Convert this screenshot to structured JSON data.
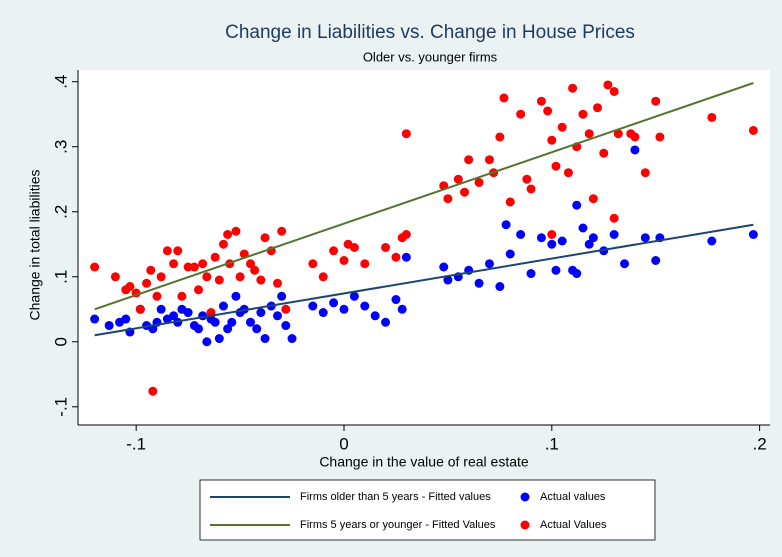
{
  "chart_data": {
    "type": "scatter",
    "title": "Change in Liabilities vs. Change in House Prices",
    "subtitle": "Older vs. younger firms",
    "x_label": "Change in the value of real estate",
    "y_label": "Change in total liabilities",
    "xlim": [
      -0.128,
      0.205
    ],
    "ylim": [
      -0.128,
      0.418
    ],
    "xticks": [
      {
        "value": -0.1,
        "label": "-.1"
      },
      0,
      {
        "value": 0.1,
        "label": ".1"
      },
      {
        "value": 0.2,
        "label": ".2"
      }
    ],
    "yticks": [
      {
        "value": -0.1,
        "label": "-.1"
      },
      0,
      {
        "value": 0.1,
        "label": ".1"
      },
      {
        "value": 0.2,
        "label": ".2"
      },
      {
        "value": 0.3,
        "label": ".3"
      },
      {
        "value": 0.4,
        "label": ".4"
      }
    ],
    "grid": false,
    "legend": "bottom",
    "series": [
      {
        "name": "Firms older than 5 years - Fitted values",
        "type": "line",
        "color": "#1a476f",
        "x": [
          -0.12,
          0.197
        ],
        "values": [
          0.01,
          0.18
        ]
      },
      {
        "name": "Actual values",
        "type": "scatter",
        "color": "#0000ff",
        "x": [
          -0.12,
          -0.113,
          -0.108,
          -0.105,
          -0.103,
          -0.098,
          -0.095,
          -0.092,
          -0.09,
          -0.088,
          -0.085,
          -0.082,
          -0.08,
          -0.078,
          -0.075,
          -0.072,
          -0.07,
          -0.068,
          -0.066,
          -0.064,
          -0.062,
          -0.06,
          -0.058,
          -0.056,
          -0.054,
          -0.052,
          -0.05,
          -0.048,
          -0.045,
          -0.042,
          -0.04,
          -0.038,
          -0.035,
          -0.032,
          -0.03,
          -0.028,
          -0.025,
          -0.015,
          -0.01,
          -0.005,
          0.0,
          0.005,
          0.01,
          0.015,
          0.02,
          0.025,
          0.028,
          0.03,
          0.048,
          0.05,
          0.055,
          0.06,
          0.065,
          0.07,
          0.075,
          0.078,
          0.085,
          0.09,
          0.095,
          0.1,
          0.102,
          0.105,
          0.11,
          0.112,
          0.115,
          0.118,
          0.12,
          0.125,
          0.13,
          0.135,
          0.14,
          0.145,
          0.15,
          0.152,
          0.177,
          0.197,
          0.112,
          0.08
        ],
        "values": [
          0.035,
          0.025,
          0.03,
          0.035,
          0.015,
          0.05,
          0.025,
          0.02,
          0.03,
          0.05,
          0.035,
          0.04,
          0.03,
          0.05,
          0.045,
          0.025,
          0.02,
          0.04,
          0.0,
          0.035,
          0.03,
          0.005,
          0.055,
          0.02,
          0.03,
          0.07,
          0.045,
          0.05,
          0.03,
          0.02,
          0.045,
          0.005,
          0.055,
          0.04,
          0.07,
          0.025,
          0.005,
          0.055,
          0.045,
          0.06,
          0.05,
          0.07,
          0.055,
          0.04,
          0.03,
          0.065,
          0.05,
          0.13,
          0.115,
          0.095,
          0.1,
          0.11,
          0.09,
          0.12,
          0.085,
          0.18,
          0.165,
          0.105,
          0.16,
          0.15,
          0.11,
          0.155,
          0.11,
          0.21,
          0.175,
          0.15,
          0.16,
          0.14,
          0.165,
          0.12,
          0.295,
          0.16,
          0.125,
          0.16,
          0.155,
          0.165,
          0.105,
          0.135
        ]
      },
      {
        "name": "Firms 5 years or younger - Fitted Values",
        "type": "line",
        "color": "#55752f",
        "x": [
          -0.12,
          0.197
        ],
        "values": [
          0.05,
          0.398
        ]
      },
      {
        "name": "Actual Values",
        "type": "scatter",
        "color": "#ff0000",
        "x": [
          -0.12,
          -0.11,
          -0.105,
          -0.103,
          -0.1,
          -0.098,
          -0.095,
          -0.093,
          -0.092,
          -0.09,
          -0.088,
          -0.085,
          -0.082,
          -0.08,
          -0.078,
          -0.075,
          -0.072,
          -0.07,
          -0.068,
          -0.066,
          -0.064,
          -0.062,
          -0.06,
          -0.058,
          -0.056,
          -0.055,
          -0.052,
          -0.05,
          -0.048,
          -0.045,
          -0.043,
          -0.04,
          -0.038,
          -0.035,
          -0.032,
          -0.03,
          -0.028,
          -0.015,
          -0.01,
          -0.005,
          0.0,
          0.002,
          0.005,
          0.01,
          0.02,
          0.025,
          0.028,
          0.03,
          0.03,
          0.048,
          0.05,
          0.055,
          0.058,
          0.06,
          0.065,
          0.07,
          0.072,
          0.075,
          0.077,
          0.08,
          0.085,
          0.088,
          0.09,
          0.095,
          0.098,
          0.1,
          0.102,
          0.105,
          0.108,
          0.11,
          0.112,
          0.115,
          0.118,
          0.12,
          0.122,
          0.125,
          0.127,
          0.13,
          0.132,
          0.138,
          0.14,
          0.145,
          0.15,
          0.152,
          0.177,
          0.197,
          0.13,
          0.1
        ],
        "values": [
          0.115,
          0.1,
          0.08,
          0.085,
          0.075,
          0.05,
          0.09,
          0.11,
          -0.076,
          0.07,
          0.1,
          0.14,
          0.12,
          0.14,
          0.07,
          0.115,
          0.115,
          0.08,
          0.12,
          0.1,
          0.045,
          0.13,
          0.095,
          0.15,
          0.165,
          0.12,
          0.17,
          0.1,
          0.135,
          0.12,
          0.11,
          0.095,
          0.16,
          0.14,
          0.09,
          0.17,
          0.05,
          0.12,
          0.1,
          0.14,
          0.125,
          0.15,
          0.145,
          0.12,
          0.145,
          0.13,
          0.16,
          0.165,
          0.32,
          0.24,
          0.22,
          0.25,
          0.23,
          0.28,
          0.245,
          0.28,
          0.26,
          0.315,
          0.375,
          0.215,
          0.35,
          0.25,
          0.235,
          0.37,
          0.355,
          0.31,
          0.27,
          0.33,
          0.26,
          0.39,
          0.3,
          0.35,
          0.32,
          0.22,
          0.36,
          0.29,
          0.395,
          0.385,
          0.32,
          0.32,
          0.315,
          0.26,
          0.37,
          0.315,
          0.345,
          0.325,
          0.19,
          0.165
        ]
      }
    ]
  }
}
